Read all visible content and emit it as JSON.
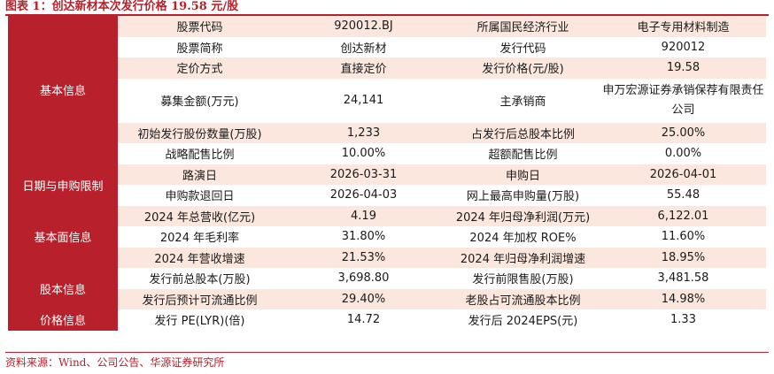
{
  "title": "图表 1：创达新材本次发行价格 19.58 元/股",
  "source": "资料来源：Wind、公司公告、华源证券研究所",
  "categories": {
    "basic": "基本信息",
    "dates": "日期与申购限制",
    "fundamentals": "基本面信息",
    "capital": "股本信息",
    "price": "价格信息"
  },
  "rows": [
    {
      "l1": "股票代码",
      "v1": "920012.BJ",
      "l2": "所属国民经济行业",
      "v2": "电子专用材料制造"
    },
    {
      "l1": "股票简称",
      "v1": "创达新材",
      "l2": "发行代码",
      "v2": "920012"
    },
    {
      "l1": "定价方式",
      "v1": "直接定价",
      "l2": "发行价格(元/股)",
      "v2": "19.58"
    },
    {
      "l1": "募集金额(万元)",
      "v1": "24,141",
      "l2": "主承销商",
      "v2": "申万宏源证券承销保荐有限责任公司"
    },
    {
      "l1": "初始发行股份数量(万股)",
      "v1": "1,233",
      "l2": "占发行后总股本比例",
      "v2": "25.00%"
    },
    {
      "l1": "战略配售比例",
      "v1": "10.00%",
      "l2": "超额配售比例",
      "v2": "0.00%"
    },
    {
      "l1": "路演日",
      "v1": "2026-03-31",
      "l2": "申购日",
      "v2": "2026-04-01"
    },
    {
      "l1": "申购款退回日",
      "v1": "2026-04-03",
      "l2": "网上最高申购量(万股)",
      "v2": "55.48"
    },
    {
      "l1": "2024 年总营收(亿元)",
      "v1": "4.19",
      "l2": "2024 年归母净利润(万元)",
      "v2": "6,122.01"
    },
    {
      "l1": "2024 年毛利率",
      "v1": "31.80%",
      "l2": "2024 年加权 ROE%",
      "v2": "11.60%"
    },
    {
      "l1": "2024 年营收增速",
      "v1": "21.53%",
      "l2": "2024 年归母净利润增速",
      "v2": "18.95%"
    },
    {
      "l1": "发行前总股本(万股)",
      "v1": "3,698.80",
      "l2": "发行前限售股(万股)",
      "v2": "3,481.58"
    },
    {
      "l1": "发行后预计可流通比例",
      "v1": "29.40%",
      "l2": "老股占可流通股本比例",
      "v2": "14.98%"
    },
    {
      "l1": "发行 PE(LYR)(倍)",
      "v1": "14.72",
      "l2": "发行后 2024EPS(元)",
      "v2": "1.33"
    }
  ]
}
